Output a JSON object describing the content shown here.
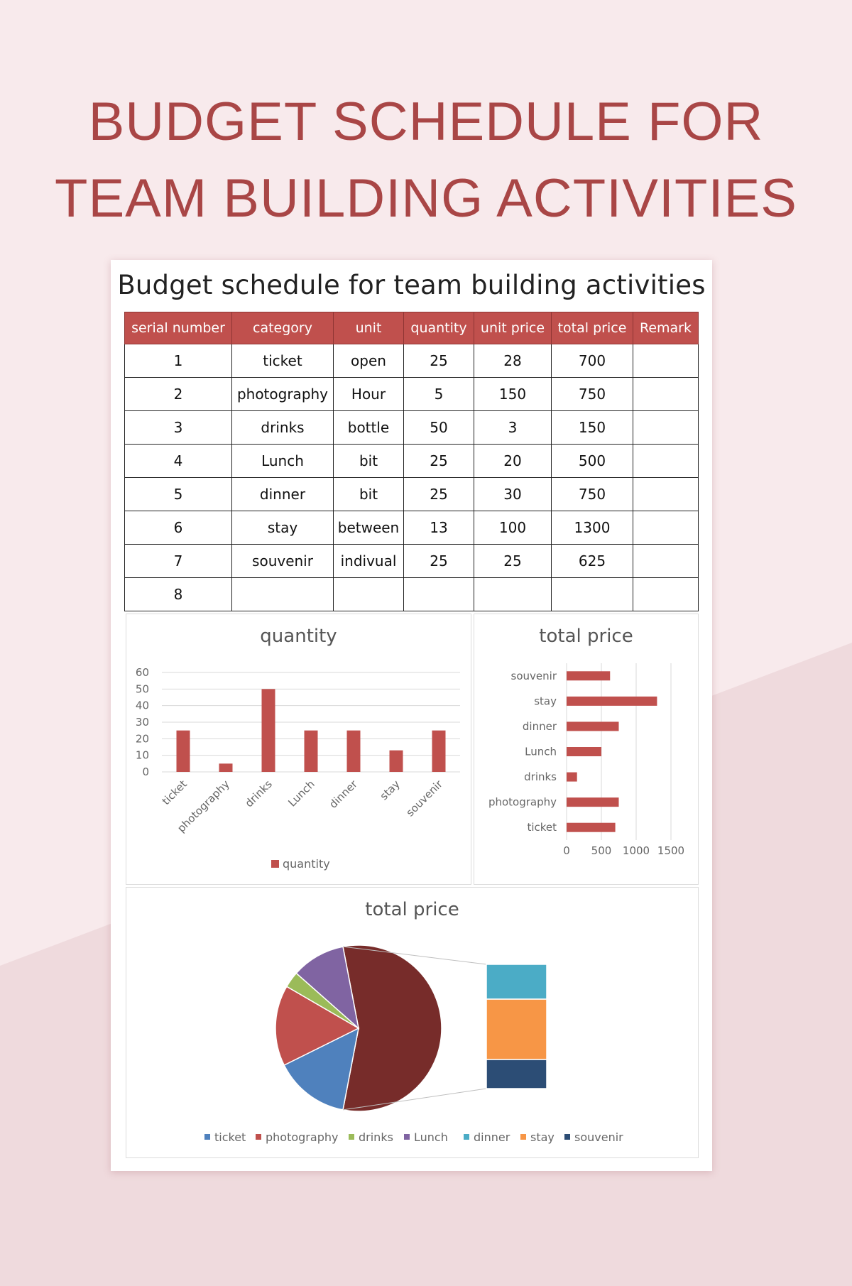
{
  "poster": {
    "title_line1": "BUDGET SCHEDULE FOR",
    "title_line2": "TEAM BUILDING ACTIVITIES"
  },
  "sheet": {
    "title": "Budget schedule for team building activities"
  },
  "table": {
    "headers": [
      "serial number",
      "category",
      "unit",
      "quantity",
      "unit price",
      "total price",
      "Remark"
    ],
    "rows": [
      [
        "1",
        "ticket",
        "open",
        "25",
        "28",
        "700",
        ""
      ],
      [
        "2",
        "photography",
        "Hour",
        "5",
        "150",
        "750",
        ""
      ],
      [
        "3",
        "drinks",
        "bottle",
        "50",
        "3",
        "150",
        ""
      ],
      [
        "4",
        "Lunch",
        "bit",
        "25",
        "20",
        "500",
        ""
      ],
      [
        "5",
        "dinner",
        "bit",
        "25",
        "30",
        "750",
        ""
      ],
      [
        "6",
        "stay",
        "between",
        "13",
        "100",
        "1300",
        ""
      ],
      [
        "7",
        "souvenir",
        "indivual",
        "25",
        "25",
        "625",
        ""
      ],
      [
        "8",
        "",
        "",
        "",
        "",
        "",
        ""
      ]
    ]
  },
  "colors": {
    "accent": "#c0504d",
    "title": "#a94646",
    "pie": [
      "#4f81bd",
      "#c0504d",
      "#9bbb59",
      "#8064a2",
      "#4bacc6",
      "#f79646",
      "#2c4d75"
    ],
    "pie_big": "#772c2a"
  },
  "chart_data": [
    {
      "type": "bar",
      "title": "quantity",
      "categories": [
        "ticket",
        "photography",
        "drinks",
        "Lunch",
        "dinner",
        "stay",
        "souvenir"
      ],
      "series": [
        {
          "name": "quantity",
          "values": [
            25,
            5,
            50,
            25,
            25,
            13,
            25
          ]
        }
      ],
      "ylim": [
        0,
        60
      ],
      "yticks": [
        "60",
        "50",
        "40",
        "30",
        "20",
        "10",
        "0"
      ],
      "grid": true,
      "legend": "bottom"
    },
    {
      "type": "bar",
      "orientation": "horizontal",
      "title": "total price",
      "categories": [
        "souvenir",
        "stay",
        "dinner",
        "Lunch",
        "drinks",
        "photography",
        "ticket"
      ],
      "values": [
        625,
        1300,
        750,
        500,
        150,
        750,
        700
      ],
      "xlim": [
        0,
        1500
      ],
      "xticks": [
        "0",
        "500",
        "1000",
        "1500"
      ],
      "grid": true
    },
    {
      "type": "pie",
      "title": "total price",
      "categories": [
        "ticket",
        "photography",
        "drinks",
        "Lunch",
        "dinner",
        "stay",
        "souvenir"
      ],
      "values": [
        700,
        750,
        150,
        500,
        750,
        1300,
        625
      ],
      "legend": "bottom"
    }
  ]
}
